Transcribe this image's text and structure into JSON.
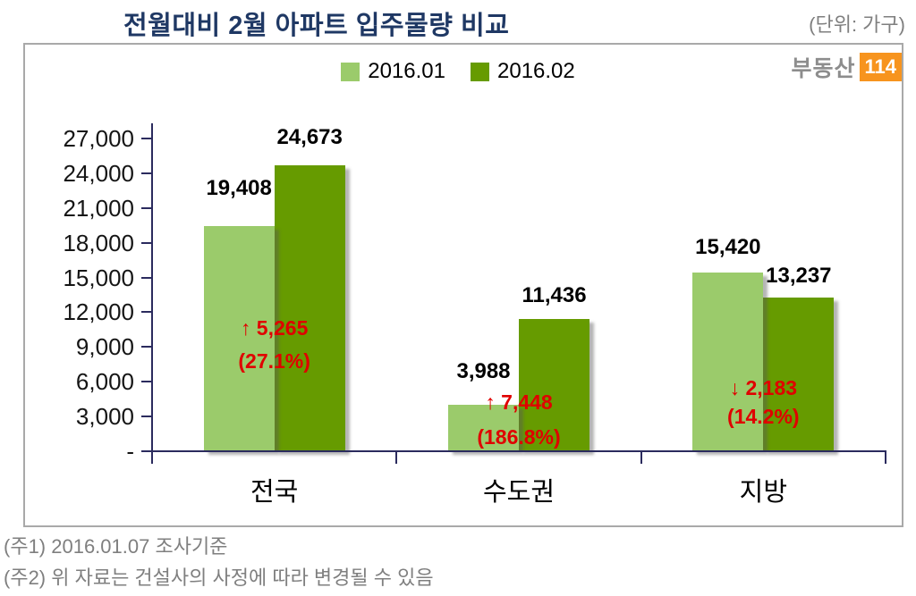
{
  "title": "전월대비 2월 아파트 입주물량 비교",
  "unit_label": "(단위: 가구)",
  "logo": {
    "text": "부동산",
    "badge": "114",
    "badge_color": "#F7941E",
    "text_color": "#8D8D8D"
  },
  "legend": {
    "items": [
      {
        "label": "2016.01",
        "color": "#9BCB6B"
      },
      {
        "label": "2016.02",
        "color": "#669B00"
      }
    ]
  },
  "chart_data": {
    "type": "bar",
    "categories": [
      "전국",
      "수도권",
      "지방"
    ],
    "series": [
      {
        "name": "2016.01",
        "color": "#9BCB6B",
        "values": [
          19408,
          3988,
          15420
        ]
      },
      {
        "name": "2016.02",
        "color": "#669B00",
        "values": [
          24673,
          11436,
          13237
        ]
      }
    ],
    "annotations": [
      {
        "line1": "↑ 5,265",
        "line2": "(27.1%)",
        "direction": "up"
      },
      {
        "line1": "↑ 7,448",
        "line2": "(186.8%)",
        "direction": "up"
      },
      {
        "line1": "↓ 2,183",
        "line2": "(14.2%)",
        "direction": "down"
      }
    ],
    "y_ticks": [
      "27,000",
      "24,000",
      "21,000",
      "18,000",
      "15,000",
      "12,000",
      "9,000",
      "6,000",
      "3,000",
      "-"
    ],
    "ylim": [
      0,
      27000
    ],
    "y_step": 3000,
    "grid": false,
    "legend_position": "top-center",
    "annotation_color": "#E00000",
    "axis_color": "#2B2B5E",
    "value_label_color": "#000000"
  },
  "colors": {
    "title": "#1F3864",
    "unit_text": "#7F7F7F",
    "footnote": "#7F7F7F",
    "frame_border": "#A9A9A9"
  },
  "footnotes": [
    "(주1) 2016.01.07 조사기준",
    "(주2) 위 자료는 건설사의 사정에 따라 변경될 수 있음"
  ]
}
